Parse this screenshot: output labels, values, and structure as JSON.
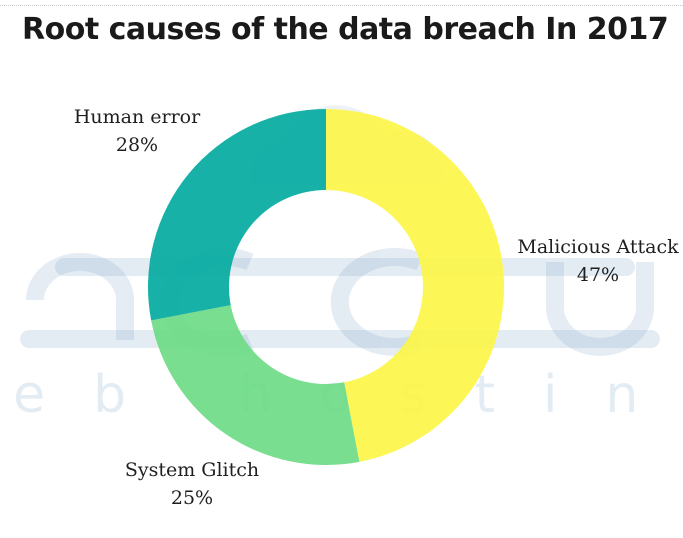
{
  "title": "Root causes of the data breach In 2017",
  "watermark": {
    "brand": "accu",
    "tagline": "web hosting"
  },
  "chart_data": {
    "type": "pie",
    "variant": "donut",
    "title": "Root causes of the data breach In 2017",
    "labels": [
      {
        "name": "Malicious Attack",
        "value_label": "47%"
      },
      {
        "name": "System Glitch",
        "value_label": "25%"
      },
      {
        "name": "Human error",
        "value_label": "28%"
      }
    ],
    "series": [
      {
        "name": "Malicious Attack",
        "value": 47,
        "color": "#fcf549"
      },
      {
        "name": "System Glitch",
        "value": 25,
        "color": "#6edb86"
      },
      {
        "name": "Human error",
        "value": 28,
        "color": "#04aaa1"
      }
    ]
  }
}
